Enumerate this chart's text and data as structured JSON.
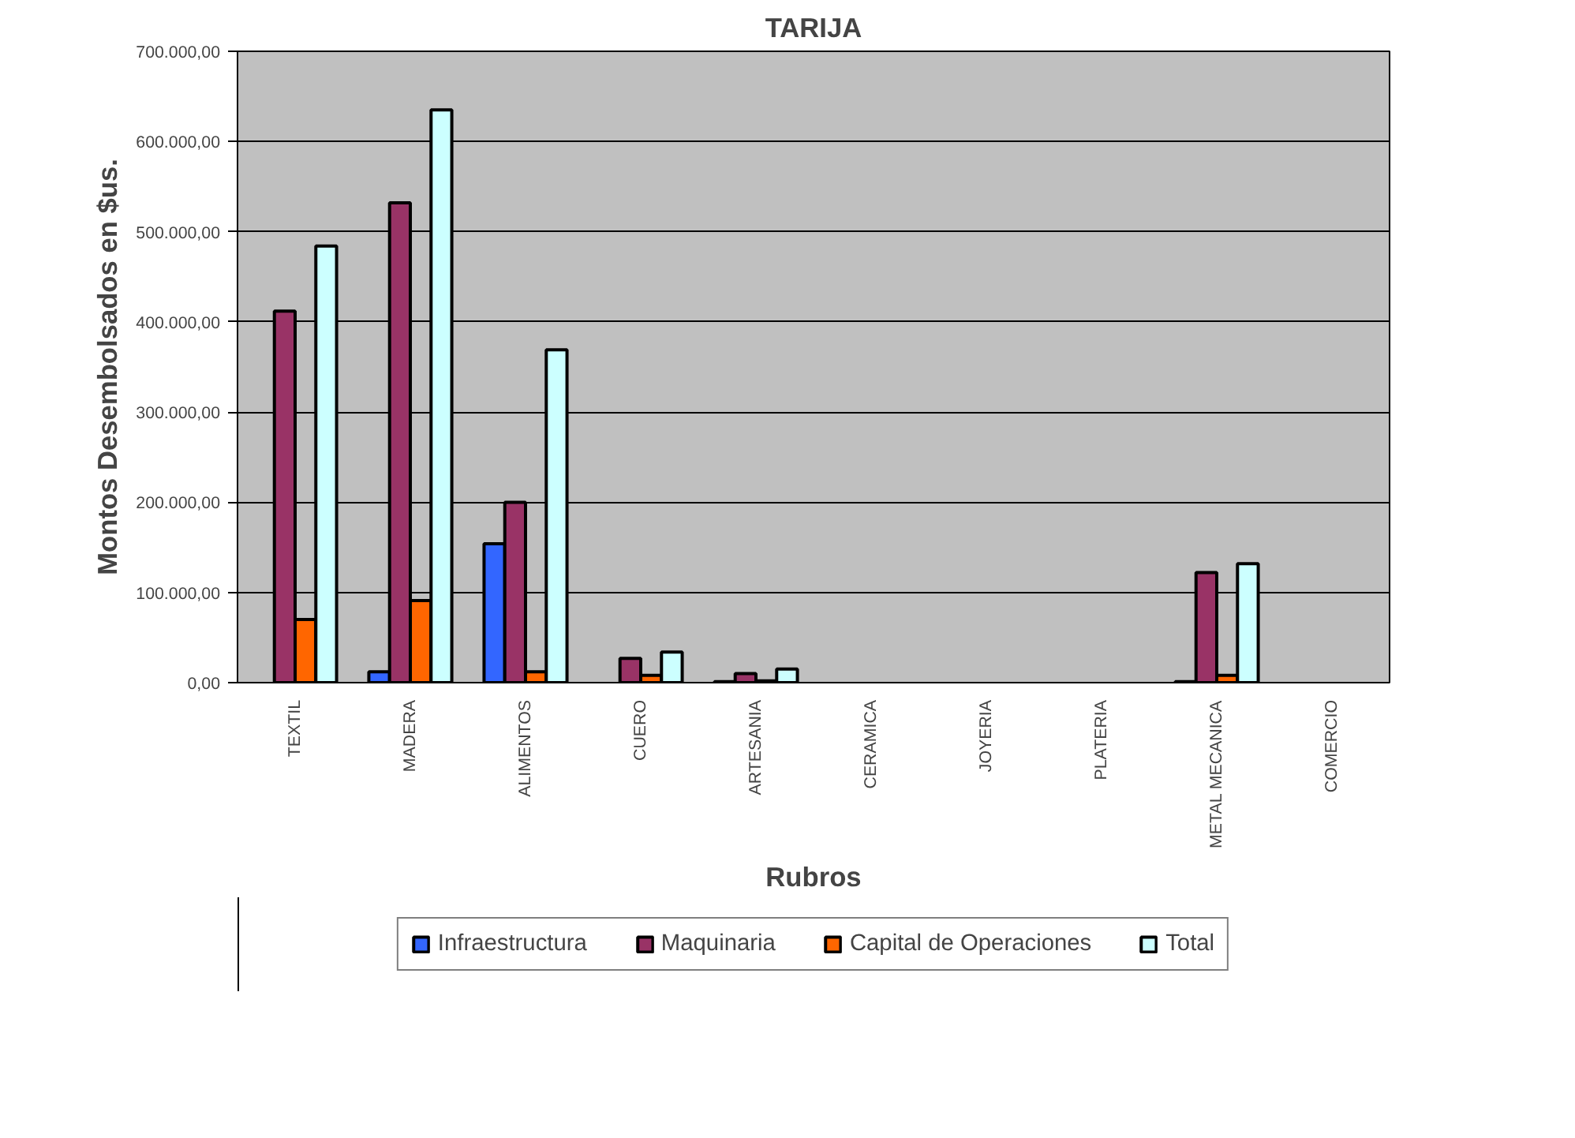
{
  "chart_data": {
    "type": "bar",
    "title": "TARIJA",
    "xlabel": "Rubros",
    "ylabel": "Montos Desembolsados en $us.",
    "categories": [
      "TEXTIL",
      "MADERA",
      "ALIMENTOS",
      "CUERO",
      "ARTESANIA",
      "CERAMICA",
      "JOYERIA",
      "PLATERIA",
      "METAL MECANICA",
      "COMERCIO"
    ],
    "series": [
      {
        "name": "Infraestructura",
        "color": "#3366ff",
        "values": [
          0,
          12000,
          154000,
          0,
          1000,
          0,
          0,
          0,
          1000,
          0
        ]
      },
      {
        "name": "Maquinaria",
        "color": "#993366",
        "values": [
          412000,
          532000,
          200000,
          27000,
          10000,
          0,
          0,
          0,
          122000,
          0
        ]
      },
      {
        "name": "Capital de Operaciones",
        "color": "#ff6600",
        "values": [
          70000,
          91000,
          12000,
          8000,
          2000,
          0,
          0,
          0,
          8000,
          0
        ]
      },
      {
        "name": "Total",
        "color": "#ccffff",
        "values": [
          484000,
          635000,
          369000,
          34000,
          15000,
          0,
          0,
          0,
          132000,
          0
        ]
      }
    ],
    "ylim": [
      0,
      700000
    ],
    "yticks": [
      {
        "value": 0,
        "label": "0,00"
      },
      {
        "value": 100000,
        "label": "100.000,00"
      },
      {
        "value": 200000,
        "label": "200.000,00"
      },
      {
        "value": 300000,
        "label": "300.000,00"
      },
      {
        "value": 400000,
        "label": "400.000,00"
      },
      {
        "value": 500000,
        "label": "500.000,00"
      },
      {
        "value": 600000,
        "label": "600.000,00"
      },
      {
        "value": 700000,
        "label": "700.000,00"
      }
    ],
    "grid": "y",
    "legend": "bottom"
  }
}
